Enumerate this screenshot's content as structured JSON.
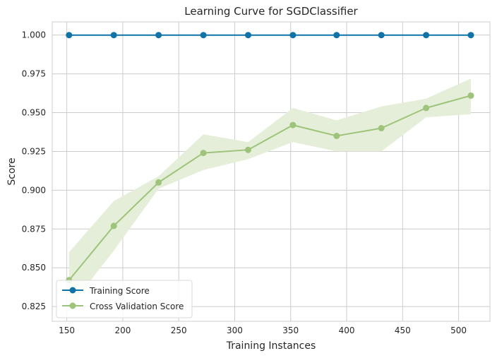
{
  "chart_data": {
    "type": "line",
    "title": "Learning Curve for SGDClassifier",
    "xlabel": "Training Instances",
    "ylabel": "Score",
    "xlim": [
      137,
      528
    ],
    "ylim": [
      0.8155,
      1.0085
    ],
    "xticks": [
      150,
      200,
      250,
      300,
      350,
      400,
      450,
      500
    ],
    "xtick_labels": [
      "150",
      "200",
      "250",
      "300",
      "350",
      "400",
      "450",
      "500"
    ],
    "yticks": [
      0.825,
      0.85,
      0.875,
      0.9,
      0.925,
      0.95,
      0.975,
      1.0
    ],
    "ytick_labels": [
      "0.825",
      "0.850",
      "0.875",
      "0.900",
      "0.925",
      "0.950",
      "0.975",
      "1.000"
    ],
    "grid": true,
    "legend_position": "lower-left",
    "x": [
      152,
      192,
      232,
      272,
      312,
      352,
      391,
      431,
      471,
      511
    ],
    "series": [
      {
        "name": "Training Score",
        "color": "#0f73a8",
        "values": [
          1.0,
          1.0,
          1.0,
          1.0,
          1.0,
          1.0,
          1.0,
          1.0,
          1.0,
          1.0
        ],
        "band_low": [
          1.0,
          1.0,
          1.0,
          1.0,
          1.0,
          1.0,
          1.0,
          1.0,
          1.0,
          1.0
        ],
        "band_high": [
          1.0,
          1.0,
          1.0,
          1.0,
          1.0,
          1.0,
          1.0,
          1.0,
          1.0,
          1.0
        ]
      },
      {
        "name": "Cross Validation Score",
        "color": "#9dc47a",
        "band_color": "#e5eed8",
        "values": [
          0.842,
          0.877,
          0.905,
          0.924,
          0.926,
          0.942,
          0.935,
          0.94,
          0.953,
          0.961
        ],
        "band_low": [
          0.824,
          0.861,
          0.901,
          0.913,
          0.92,
          0.931,
          0.925,
          0.925,
          0.947,
          0.949
        ],
        "band_high": [
          0.86,
          0.893,
          0.909,
          0.936,
          0.931,
          0.953,
          0.945,
          0.954,
          0.959,
          0.972
        ]
      }
    ]
  }
}
